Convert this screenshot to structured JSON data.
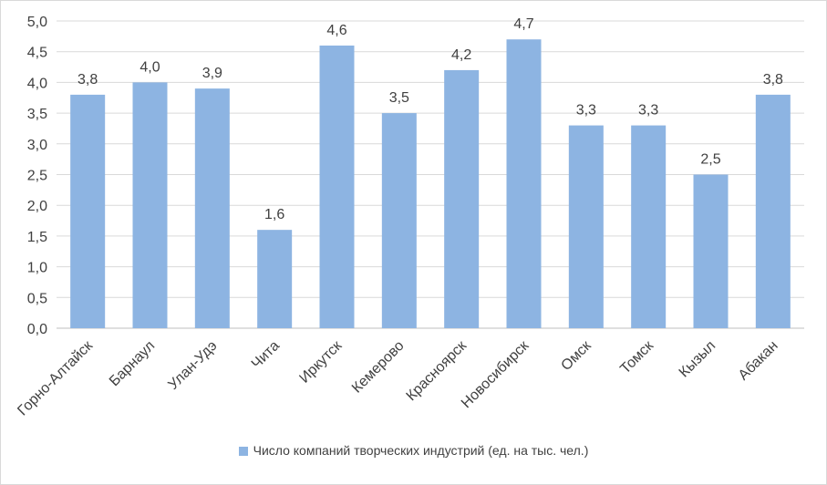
{
  "chart_data": {
    "type": "bar",
    "categories": [
      "Горно-Алтайск",
      "Барнаул",
      "Улан-Удэ",
      "Чита",
      "Иркутск",
      "Кемерово",
      "Красноярск",
      "Новосибирск",
      "Омск",
      "Томск",
      "Кызыл",
      "Абакан"
    ],
    "series": [
      {
        "name": "Число компаний творческих индустрий (ед. на тыс. чел.)",
        "values": [
          3.8,
          4.0,
          3.9,
          1.6,
          4.6,
          3.5,
          4.2,
          4.7,
          3.3,
          3.3,
          2.5,
          3.8
        ],
        "labels": [
          "3,8",
          "4,0",
          "3,9",
          "1,6",
          "4,6",
          "3,5",
          "4,2",
          "4,7",
          "3,3",
          "3,3",
          "2,5",
          "3,8"
        ],
        "color": "#8db4e2"
      }
    ],
    "ylim": [
      0,
      5
    ],
    "yticks": [
      "0,0",
      "0,5",
      "1,0",
      "1,5",
      "2,0",
      "2,5",
      "3,0",
      "3,5",
      "4,0",
      "4,5",
      "5,0"
    ],
    "grid": true,
    "legend_position": "bottom"
  }
}
